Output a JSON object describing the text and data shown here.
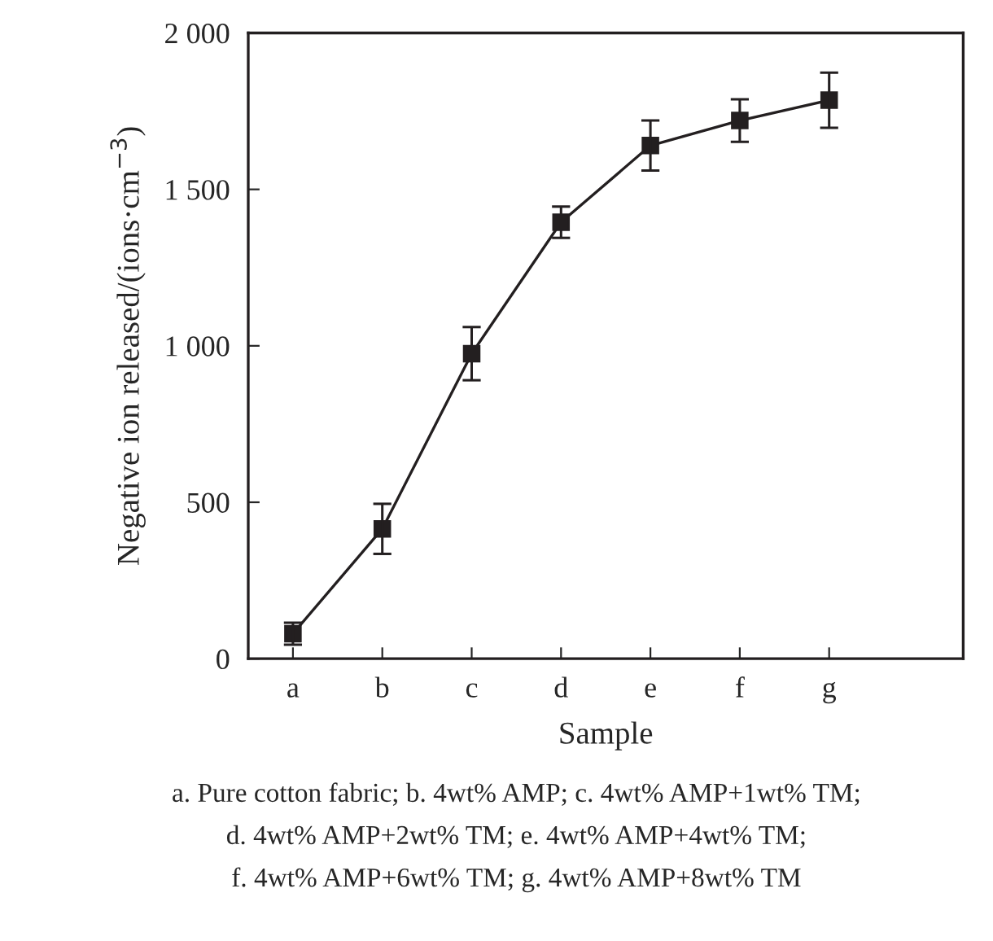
{
  "chart_data": {
    "type": "line",
    "xlabel": "Sample",
    "ylabel": "Negative ion released/(ions·cm$^{−3}$)",
    "categories": [
      "a",
      "b",
      "c",
      "d",
      "e",
      "f",
      "g"
    ],
    "series": [
      {
        "color": "#231f20",
        "values": [
          80,
          415,
          975,
          1395,
          1640,
          1720,
          1785
        ],
        "errors": [
          35,
          80,
          85,
          50,
          80,
          68,
          88
        ]
      }
    ],
    "ylim": [
      0,
      2000
    ],
    "yticks": [
      0,
      500,
      {
        "value": 1000,
        "label": "1 000"
      },
      {
        "value": 1500,
        "label": "1 500"
      },
      {
        "value": 2000,
        "label": "2 000"
      }
    ],
    "marker": "square",
    "line_style": "solid",
    "grid": false,
    "legend": false,
    "annotations": [
      "a. Pure cotton fabric; b. 4wt% AMP; c. 4wt% AMP+1wt% TM;",
      "d. 4wt% AMP+2wt% TM; e. 4wt% AMP+4wt% TM;",
      "f. 4wt% AMP+6wt% TM; g. 4wt% AMP+8wt% TM"
    ]
  }
}
